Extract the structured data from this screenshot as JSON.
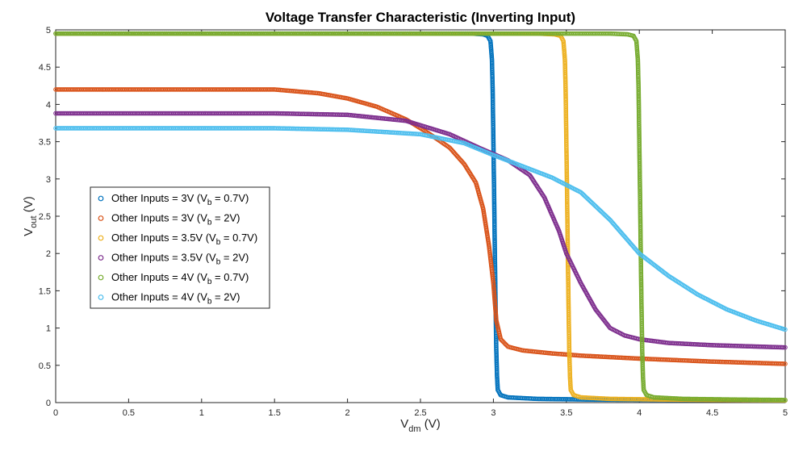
{
  "chart_data": {
    "type": "scatter",
    "title": "Voltage Transfer Characteristic (Inverting Input)",
    "xlabel": {
      "main": "V",
      "sub": "dm",
      "unit": " (V)"
    },
    "ylabel": {
      "main": "V",
      "sub": "out",
      "unit": " (V)"
    },
    "xlim": [
      0,
      5
    ],
    "ylim": [
      0,
      5
    ],
    "xticks": [
      0,
      0.5,
      1,
      1.5,
      2,
      2.5,
      3,
      3.5,
      4,
      4.5,
      5
    ],
    "yticks": [
      0,
      0.5,
      1,
      1.5,
      2,
      2.5,
      3,
      3.5,
      4,
      4.5,
      5
    ],
    "grid": false,
    "legend_position": "center-left",
    "series": [
      {
        "name": "Other Inputs = 3V (Vb = 0.7V)",
        "legend": {
          "pre": "Other Inputs = 3V (V",
          "sub": "b",
          "post": " = 0.7V)"
        },
        "color": "#0072BD",
        "points": [
          [
            0,
            4.95
          ],
          [
            1,
            4.95
          ],
          [
            2,
            4.95
          ],
          [
            2.85,
            4.95
          ],
          [
            2.93,
            4.94
          ],
          [
            2.96,
            4.92
          ],
          [
            2.98,
            4.85
          ],
          [
            2.99,
            4.6
          ],
          [
            2.995,
            4.2
          ],
          [
            3.0,
            3.5
          ],
          [
            3.005,
            2.8
          ],
          [
            3.01,
            2.0
          ],
          [
            3.015,
            1.3
          ],
          [
            3.02,
            0.7
          ],
          [
            3.025,
            0.35
          ],
          [
            3.03,
            0.17
          ],
          [
            3.05,
            0.1
          ],
          [
            3.1,
            0.07
          ],
          [
            3.3,
            0.05
          ],
          [
            3.7,
            0.04
          ],
          [
            4.5,
            0.035
          ],
          [
            5,
            0.03
          ]
        ]
      },
      {
        "name": "Other Inputs = 3V (Vb = 2V)",
        "legend": {
          "pre": "Other Inputs = 3V (V",
          "sub": "b",
          "post": " = 2V)"
        },
        "color": "#D95319",
        "points": [
          [
            0,
            4.2
          ],
          [
            1.0,
            4.2
          ],
          [
            1.5,
            4.2
          ],
          [
            1.8,
            4.15
          ],
          [
            2.0,
            4.08
          ],
          [
            2.2,
            3.97
          ],
          [
            2.4,
            3.8
          ],
          [
            2.55,
            3.62
          ],
          [
            2.7,
            3.42
          ],
          [
            2.8,
            3.2
          ],
          [
            2.88,
            2.95
          ],
          [
            2.93,
            2.6
          ],
          [
            2.97,
            2.1
          ],
          [
            3.0,
            1.6
          ],
          [
            3.02,
            1.1
          ],
          [
            3.05,
            0.85
          ],
          [
            3.1,
            0.75
          ],
          [
            3.2,
            0.7
          ],
          [
            3.4,
            0.66
          ],
          [
            3.6,
            0.63
          ],
          [
            4.0,
            0.59
          ],
          [
            4.5,
            0.55
          ],
          [
            5.0,
            0.52
          ]
        ]
      },
      {
        "name": "Other Inputs = 3.5V (Vb = 0.7V)",
        "legend": {
          "pre": "Other Inputs = 3.5V (V",
          "sub": "b",
          "post": " = 0.7V)"
        },
        "color": "#EDB120",
        "points": [
          [
            0,
            4.95
          ],
          [
            2,
            4.95
          ],
          [
            3.3,
            4.95
          ],
          [
            3.42,
            4.94
          ],
          [
            3.46,
            4.92
          ],
          [
            3.48,
            4.85
          ],
          [
            3.49,
            4.6
          ],
          [
            3.495,
            4.2
          ],
          [
            3.5,
            3.5
          ],
          [
            3.505,
            2.8
          ],
          [
            3.51,
            2.0
          ],
          [
            3.515,
            1.3
          ],
          [
            3.52,
            0.7
          ],
          [
            3.525,
            0.35
          ],
          [
            3.53,
            0.17
          ],
          [
            3.55,
            0.1
          ],
          [
            3.6,
            0.07
          ],
          [
            3.8,
            0.05
          ],
          [
            4.2,
            0.04
          ],
          [
            5,
            0.03
          ]
        ]
      },
      {
        "name": "Other Inputs = 3.5V (Vb = 2V)",
        "legend": {
          "pre": "Other Inputs = 3.5V (V",
          "sub": "b",
          "post": " = 2V)"
        },
        "color": "#7E2F8E",
        "points": [
          [
            0,
            3.88
          ],
          [
            1.5,
            3.88
          ],
          [
            2.0,
            3.86
          ],
          [
            2.4,
            3.78
          ],
          [
            2.7,
            3.6
          ],
          [
            2.9,
            3.42
          ],
          [
            3.1,
            3.25
          ],
          [
            3.25,
            3.05
          ],
          [
            3.35,
            2.75
          ],
          [
            3.45,
            2.3
          ],
          [
            3.5,
            2.0
          ],
          [
            3.6,
            1.6
          ],
          [
            3.7,
            1.25
          ],
          [
            3.8,
            1.0
          ],
          [
            3.9,
            0.9
          ],
          [
            4.0,
            0.85
          ],
          [
            4.2,
            0.8
          ],
          [
            4.5,
            0.77
          ],
          [
            5.0,
            0.74
          ]
        ]
      },
      {
        "name": "Other Inputs = 4V (Vb = 0.7V)",
        "legend": {
          "pre": "Other Inputs = 4V (V",
          "sub": "b",
          "post": " = 0.7V)"
        },
        "color": "#77AC30",
        "points": [
          [
            0,
            4.95
          ],
          [
            2,
            4.95
          ],
          [
            3.8,
            4.95
          ],
          [
            3.92,
            4.94
          ],
          [
            3.96,
            4.92
          ],
          [
            3.98,
            4.85
          ],
          [
            3.99,
            4.6
          ],
          [
            3.995,
            4.2
          ],
          [
            4.0,
            3.5
          ],
          [
            4.005,
            2.8
          ],
          [
            4.01,
            2.0
          ],
          [
            4.015,
            1.3
          ],
          [
            4.02,
            0.7
          ],
          [
            4.025,
            0.35
          ],
          [
            4.03,
            0.17
          ],
          [
            4.05,
            0.1
          ],
          [
            4.1,
            0.07
          ],
          [
            4.3,
            0.05
          ],
          [
            4.7,
            0.04
          ],
          [
            5,
            0.035
          ]
        ]
      },
      {
        "name": "Other Inputs = 4V (Vb = 2V)",
        "legend": {
          "pre": "Other Inputs = 4V (V",
          "sub": "b",
          "post": " = 2V)"
        },
        "color": "#4DBEEE",
        "points": [
          [
            0,
            3.68
          ],
          [
            1.5,
            3.68
          ],
          [
            2.0,
            3.66
          ],
          [
            2.5,
            3.6
          ],
          [
            2.8,
            3.48
          ],
          [
            3.0,
            3.32
          ],
          [
            3.2,
            3.17
          ],
          [
            3.4,
            3.02
          ],
          [
            3.6,
            2.82
          ],
          [
            3.8,
            2.45
          ],
          [
            4.0,
            2.0
          ],
          [
            4.2,
            1.7
          ],
          [
            4.4,
            1.45
          ],
          [
            4.6,
            1.25
          ],
          [
            4.8,
            1.1
          ],
          [
            5.0,
            0.98
          ]
        ]
      }
    ]
  }
}
